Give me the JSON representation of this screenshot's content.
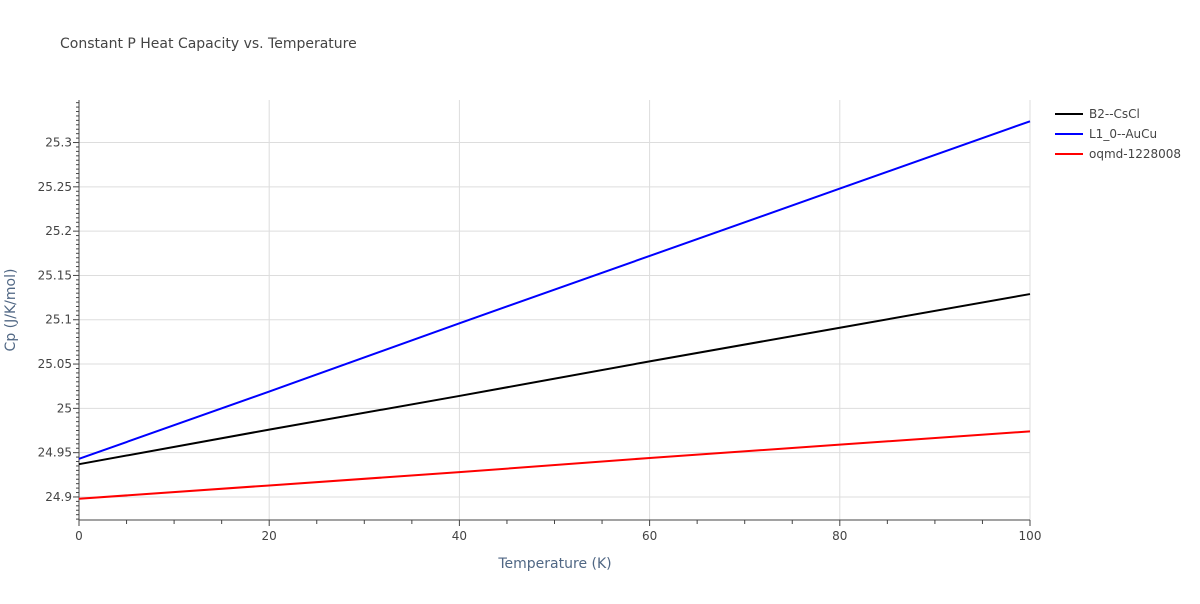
{
  "chart_data": {
    "type": "line",
    "title": "Constant P Heat Capacity vs. Temperature",
    "xlabel": "Temperature (K)",
    "ylabel": "Cp (J/K/mol)",
    "xlim": [
      0,
      100
    ],
    "ylim": [
      24.874,
      25.348
    ],
    "x_ticks": [
      0,
      20,
      40,
      60,
      80,
      100
    ],
    "y_ticks": [
      24.9,
      24.95,
      25,
      25.05,
      25.1,
      25.15,
      25.2,
      25.25,
      25.3
    ],
    "y_tick_labels": [
      "24.9",
      "24.95",
      "25",
      "25.05",
      "25.1",
      "25.15",
      "25.2",
      "25.25",
      "25.3"
    ],
    "grid": true,
    "legend_position": "top-right outside",
    "series": [
      {
        "name": "B2--CsCl",
        "color": "#000000",
        "x": [
          0,
          20,
          40,
          60,
          80,
          100
        ],
        "y": [
          24.937,
          24.976,
          25.014,
          25.053,
          25.091,
          25.129
        ]
      },
      {
        "name": "L1_0--AuCu",
        "color": "#0000ff",
        "x": [
          0,
          20,
          40,
          60,
          80,
          100
        ],
        "y": [
          24.943,
          25.019,
          25.096,
          25.172,
          25.248,
          25.324
        ]
      },
      {
        "name": "oqmd-1228008",
        "color": "#ff0000",
        "x": [
          0,
          20,
          40,
          60,
          80,
          100
        ],
        "y": [
          24.898,
          24.913,
          24.928,
          24.944,
          24.959,
          24.974
        ]
      }
    ]
  }
}
